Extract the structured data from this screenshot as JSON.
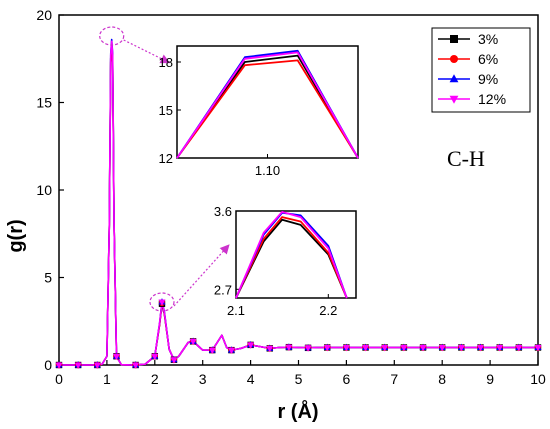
{
  "chart_data": {
    "type": "line",
    "xlabel": "r (Å)",
    "ylabel": "g(r)",
    "xlim": [
      0,
      10
    ],
    "ylim": [
      0,
      20
    ],
    "xticks": [
      "0",
      "1",
      "2",
      "3",
      "4",
      "5",
      "6",
      "7",
      "8",
      "9",
      "10"
    ],
    "yticks": [
      "0",
      "5",
      "10",
      "15",
      "20"
    ],
    "annotation": "C-H",
    "legend_position": "top-right",
    "x": [
      0,
      0.2,
      0.4,
      0.6,
      0.8,
      0.9,
      1.0,
      1.05,
      1.08,
      1.1,
      1.12,
      1.15,
      1.2,
      1.3,
      1.5,
      1.6,
      1.8,
      2.0,
      2.1,
      2.15,
      2.2,
      2.3,
      2.4,
      2.5,
      2.6,
      2.7,
      2.8,
      2.9,
      3.0,
      3.2,
      3.4,
      3.5,
      3.6,
      3.8,
      4.0,
      4.2,
      4.4,
      4.6,
      4.8,
      5.0,
      5.2,
      5.4,
      5.6,
      5.8,
      6.0,
      6.4,
      6.8,
      7.2,
      7.6,
      8.0,
      8.4,
      8.8,
      9.2,
      9.6,
      10.0
    ],
    "marker_x": [
      0,
      0.4,
      0.8,
      1.2,
      1.6,
      2.0,
      2.15,
      2.4,
      2.8,
      3.2,
      3.6,
      4.0,
      4.4,
      4.8,
      5.2,
      5.6,
      6.0,
      6.4,
      6.8,
      7.2,
      7.6,
      8.0,
      8.4,
      8.8,
      9.2,
      9.6,
      10.0
    ],
    "series": [
      {
        "name": "3%",
        "color": "#000000",
        "marker": "square",
        "y": [
          0,
          0,
          0,
          0,
          0,
          0.05,
          0.5,
          8,
          17.5,
          18.2,
          17.5,
          8,
          0.5,
          0.02,
          0,
          0,
          0.05,
          0.5,
          2.3,
          3.5,
          2.9,
          0.9,
          0.3,
          0.5,
          0.9,
          1.3,
          1.35,
          1.1,
          0.85,
          0.85,
          1.7,
          1.0,
          0.85,
          0.95,
          1.15,
          1.05,
          0.95,
          1.0,
          1.02,
          1.0,
          0.98,
          1.0,
          1.0,
          1.0,
          1.0,
          1.0,
          1.0,
          1.0,
          1.0,
          1.0,
          1.0,
          1.0,
          1.0,
          1.0,
          1.0
        ]
      },
      {
        "name": "6%",
        "color": "#ff0000",
        "marker": "circle",
        "y": [
          0,
          0,
          0,
          0,
          0,
          0.05,
          0.5,
          8,
          17.3,
          18.0,
          17.3,
          8,
          0.5,
          0.02,
          0,
          0,
          0.05,
          0.5,
          2.3,
          3.55,
          2.95,
          0.9,
          0.3,
          0.5,
          0.9,
          1.3,
          1.35,
          1.1,
          0.85,
          0.85,
          1.7,
          1.0,
          0.85,
          0.95,
          1.15,
          1.05,
          0.95,
          1.0,
          1.02,
          1.0,
          0.98,
          1.0,
          1.0,
          1.0,
          1.0,
          1.0,
          1.0,
          1.0,
          1.0,
          1.0,
          1.0,
          1.0,
          1.0,
          1.0,
          1.0
        ]
      },
      {
        "name": "9%",
        "color": "#0000ff",
        "marker": "triangle-up",
        "y": [
          0,
          0,
          0,
          0,
          0,
          0.05,
          0.5,
          8,
          17.8,
          18.6,
          17.8,
          8,
          0.5,
          0.02,
          0,
          0,
          0.05,
          0.5,
          2.4,
          3.6,
          3.05,
          0.9,
          0.3,
          0.5,
          0.9,
          1.3,
          1.35,
          1.1,
          0.85,
          0.85,
          1.7,
          1.0,
          0.85,
          0.95,
          1.15,
          1.05,
          0.95,
          1.0,
          1.02,
          1.0,
          0.98,
          1.0,
          1.0,
          1.0,
          1.0,
          1.0,
          1.0,
          1.0,
          1.0,
          1.0,
          1.0,
          1.0,
          1.0,
          1.0,
          1.0
        ]
      },
      {
        "name": "12%",
        "color": "#ff00ff",
        "marker": "triangle-down",
        "y": [
          0,
          0,
          0,
          0,
          0,
          0.05,
          0.5,
          8,
          17.7,
          18.5,
          17.7,
          8,
          0.5,
          0.02,
          0,
          0,
          0.05,
          0.5,
          2.4,
          3.6,
          3.0,
          0.9,
          0.3,
          0.5,
          0.9,
          1.3,
          1.35,
          1.1,
          0.85,
          0.85,
          1.7,
          1.0,
          0.85,
          0.95,
          1.15,
          1.05,
          0.95,
          1.0,
          1.02,
          1.0,
          0.98,
          1.0,
          1.0,
          1.0,
          1.0,
          1.0,
          1.0,
          1.0,
          1.0,
          1.0,
          1.0,
          1.0,
          1.0,
          1.0,
          1.0
        ]
      }
    ],
    "insets": [
      {
        "name": "first-peak",
        "xlim": [
          1.04,
          1.16
        ],
        "ylim": [
          12,
          19
        ],
        "xticks": [
          "1.10"
        ],
        "xtick_values": [
          1.1
        ],
        "yticks": [
          "12",
          "15",
          "18"
        ],
        "ytick_values": [
          12,
          15,
          18
        ],
        "x": [
          1.04,
          1.085,
          1.12,
          1.16
        ],
        "series_y": [
          [
            12,
            18.0,
            18.4,
            12
          ],
          [
            12,
            17.8,
            18.1,
            12
          ],
          [
            12,
            18.3,
            18.7,
            12
          ],
          [
            12,
            18.2,
            18.6,
            12
          ]
        ],
        "highlight_center": [
          1.1,
          18.8
        ]
      },
      {
        "name": "second-peak",
        "xlim": [
          2.1,
          2.23
        ],
        "ylim": [
          2.6,
          3.6
        ],
        "xticks": [
          "2.1",
          "2.2"
        ],
        "xtick_values": [
          2.1,
          2.2
        ],
        "yticks": [
          "2.7",
          "3.6"
        ],
        "ytick_values": [
          2.7,
          3.6
        ],
        "x": [
          2.1,
          2.13,
          2.15,
          2.17,
          2.2,
          2.22
        ],
        "series_y": [
          [
            2.6,
            3.25,
            3.5,
            3.44,
            3.1,
            2.6
          ],
          [
            2.6,
            3.28,
            3.53,
            3.48,
            3.12,
            2.6
          ],
          [
            2.6,
            3.33,
            3.58,
            3.55,
            3.2,
            2.6
          ],
          [
            2.6,
            3.35,
            3.59,
            3.53,
            3.17,
            2.6
          ]
        ],
        "highlight_center": [
          2.15,
          3.6
        ]
      }
    ]
  }
}
